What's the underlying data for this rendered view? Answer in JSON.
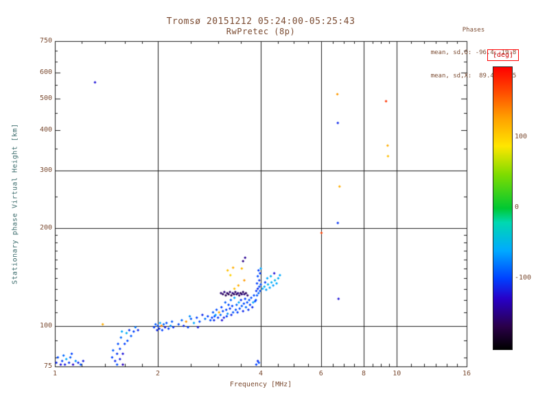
{
  "chart_data": {
    "type": "scatter",
    "title": "Tromsø 20151212 05:24:00-05:25:43",
    "subtitle": "RwPretec (8p)",
    "xlabel": "Frequency [MHz]",
    "ylabel": "Stationary phase Virtual Height [km]",
    "x_scale": "log",
    "y_scale": "log",
    "xlim": [
      1,
      16
    ],
    "ylim": [
      75,
      750
    ],
    "x_major_ticks": [
      1,
      2,
      4,
      6,
      8,
      10,
      16
    ],
    "x_gridlines": [
      2,
      4,
      6,
      8,
      10
    ],
    "x_minor_ticks": [
      1.2,
      1.4,
      1.6,
      1.8,
      2.5,
      3,
      3.5,
      4.5,
      5,
      5.5,
      6.5,
      7,
      7.5,
      8.5,
      9,
      9.5,
      11,
      12,
      13,
      14,
      15
    ],
    "y_major_ticks": [
      75,
      100,
      200,
      300,
      400,
      500,
      600,
      750
    ],
    "y_gridlines": [
      100,
      200,
      300
    ],
    "y_minor_ticks": [
      80,
      90,
      110,
      120,
      130,
      140,
      150,
      160,
      170,
      180,
      190,
      250,
      350,
      450,
      550,
      650,
      700
    ],
    "grid": true,
    "legend_position": "right-colorbar",
    "color_by": "phase_deg",
    "color_range": [
      -200,
      200
    ],
    "colormap": [
      [
        0.0,
        "#000000"
      ],
      [
        0.08,
        "#2a0048"
      ],
      [
        0.18,
        "#2800c8"
      ],
      [
        0.25,
        "#0040ff"
      ],
      [
        0.35,
        "#00aaff"
      ],
      [
        0.45,
        "#00d8b0"
      ],
      [
        0.5,
        "#00c832"
      ],
      [
        0.62,
        "#7fdc00"
      ],
      [
        0.72,
        "#ffe600"
      ],
      [
        0.82,
        "#ffa000"
      ],
      [
        0.92,
        "#ff4400"
      ],
      [
        1.0,
        "#ff0000"
      ]
    ],
    "points_format": [
      "frequency_MHz",
      "virtual_height_km",
      "phase_deg"
    ],
    "points": [
      [
        1.01,
        77,
        -110
      ],
      [
        1.02,
        80,
        -95
      ],
      [
        1.04,
        76,
        -120
      ],
      [
        1.05,
        78,
        -100
      ],
      [
        1.06,
        81,
        -85
      ],
      [
        1.07,
        76,
        -115
      ],
      [
        1.08,
        79,
        -60
      ],
      [
        1.1,
        77,
        -105
      ],
      [
        1.11,
        80,
        -90
      ],
      [
        1.13,
        76,
        -125
      ],
      [
        1.15,
        78,
        -70
      ],
      [
        1.17,
        77,
        -110
      ],
      [
        1.19,
        76,
        -95
      ],
      [
        1.21,
        78,
        -115
      ],
      [
        1.12,
        82,
        -100
      ],
      [
        1.31,
        560,
        -120
      ],
      [
        1.38,
        101,
        120
      ],
      [
        1.47,
        80,
        -100
      ],
      [
        1.48,
        84,
        -90
      ],
      [
        1.5,
        78,
        -110
      ],
      [
        1.52,
        82,
        -105
      ],
      [
        1.53,
        88,
        -95
      ],
      [
        1.55,
        79,
        -115
      ],
      [
        1.55,
        85,
        -100
      ],
      [
        1.56,
        92,
        -85
      ],
      [
        1.57,
        96,
        -60
      ],
      [
        1.58,
        82,
        -120
      ],
      [
        1.6,
        88,
        -100
      ],
      [
        1.62,
        95,
        -55
      ],
      [
        1.63,
        90,
        -95
      ],
      [
        1.65,
        97,
        -105
      ],
      [
        1.67,
        93,
        -90
      ],
      [
        1.7,
        96,
        -100
      ],
      [
        1.72,
        99,
        -80
      ],
      [
        1.75,
        97,
        -110
      ],
      [
        1.58,
        76,
        -130
      ],
      [
        1.52,
        76,
        -95
      ],
      [
        1.95,
        99,
        -100
      ],
      [
        1.97,
        101,
        -90
      ],
      [
        1.99,
        97,
        -110
      ],
      [
        2.0,
        100,
        -95
      ],
      [
        2.02,
        98,
        -105
      ],
      [
        2.03,
        102,
        -60
      ],
      [
        2.05,
        100,
        140
      ],
      [
        2.06,
        97,
        -100
      ],
      [
        2.08,
        101,
        -85
      ],
      [
        2.1,
        99,
        -115
      ],
      [
        2.12,
        102,
        -95
      ],
      [
        2.15,
        98,
        -100
      ],
      [
        2.18,
        100,
        -70
      ],
      [
        2.2,
        103,
        -90
      ],
      [
        2.22,
        99,
        -105
      ],
      [
        2.3,
        101,
        -95
      ],
      [
        2.35,
        104,
        -85
      ],
      [
        2.38,
        100,
        -110
      ],
      [
        2.42,
        103,
        130
      ],
      [
        2.45,
        99,
        -100
      ],
      [
        2.5,
        105,
        -90
      ],
      [
        2.55,
        102,
        -60
      ],
      [
        2.6,
        106,
        -100
      ],
      [
        2.65,
        103,
        -95
      ],
      [
        2.7,
        108,
        -110
      ],
      [
        2.75,
        105,
        -80
      ],
      [
        2.8,
        107,
        -100
      ],
      [
        2.85,
        104,
        -95
      ],
      [
        2.62,
        99,
        -115
      ],
      [
        2.48,
        107,
        -70
      ],
      [
        2.88,
        106,
        -100
      ],
      [
        2.9,
        110,
        -90
      ],
      [
        2.92,
        104,
        -110
      ],
      [
        2.95,
        108,
        -60
      ],
      [
        2.97,
        112,
        -95
      ],
      [
        3.0,
        106,
        -105
      ],
      [
        3.02,
        110,
        120
      ],
      [
        3.05,
        108,
        -85
      ],
      [
        3.07,
        114,
        -100
      ],
      [
        3.1,
        111,
        -95
      ],
      [
        3.12,
        106,
        -115
      ],
      [
        3.15,
        118,
        -90
      ],
      [
        3.17,
        112,
        -100
      ],
      [
        3.2,
        109,
        -70
      ],
      [
        3.22,
        116,
        -95
      ],
      [
        3.25,
        113,
        -105
      ],
      [
        3.27,
        120,
        -85
      ],
      [
        3.3,
        115,
        -100
      ],
      [
        3.32,
        110,
        -90
      ],
      [
        3.35,
        122,
        -60
      ],
      [
        3.08,
        104,
        -120
      ],
      [
        3.18,
        107,
        -100
      ],
      [
        2.93,
        107,
        -95
      ],
      [
        3.28,
        108,
        -110
      ],
      [
        3.2,
        148,
        110
      ],
      [
        3.32,
        151,
        120
      ],
      [
        3.26,
        143,
        100
      ],
      [
        3.52,
        150,
        115
      ],
      [
        3.06,
        126,
        -155
      ],
      [
        3.1,
        125,
        -160
      ],
      [
        3.13,
        127,
        -150
      ],
      [
        3.16,
        124,
        -165
      ],
      [
        3.19,
        126,
        -158
      ],
      [
        3.22,
        125,
        -162
      ],
      [
        3.25,
        127,
        -155
      ],
      [
        3.28,
        124,
        -168
      ],
      [
        3.31,
        126,
        -152
      ],
      [
        3.34,
        125,
        -160
      ],
      [
        3.37,
        127,
        -157
      ],
      [
        3.4,
        125,
        -163
      ],
      [
        3.43,
        126,
        -150
      ],
      [
        3.46,
        124,
        -158
      ],
      [
        3.49,
        126,
        -165
      ],
      [
        3.52,
        125,
        -155
      ],
      [
        3.55,
        127,
        -160
      ],
      [
        3.58,
        125,
        -152
      ],
      [
        3.62,
        126,
        -162
      ],
      [
        3.66,
        124,
        -156
      ],
      [
        3.38,
        112,
        -95
      ],
      [
        3.4,
        116,
        -85
      ],
      [
        3.42,
        110,
        -100
      ],
      [
        3.45,
        118,
        -60
      ],
      [
        3.47,
        113,
        -95
      ],
      [
        3.5,
        120,
        -105
      ],
      [
        3.52,
        115,
        -90
      ],
      [
        3.55,
        111,
        -110
      ],
      [
        3.57,
        117,
        -95
      ],
      [
        3.6,
        121,
        -100
      ],
      [
        3.62,
        114,
        -85
      ],
      [
        3.65,
        118,
        -95
      ],
      [
        3.68,
        112,
        -105
      ],
      [
        3.7,
        120,
        -90
      ],
      [
        3.72,
        116,
        -100
      ],
      [
        3.75,
        122,
        -95
      ],
      [
        3.78,
        114,
        -110
      ],
      [
        3.8,
        118,
        -60
      ],
      [
        3.82,
        124,
        -95
      ],
      [
        3.85,
        119,
        -100
      ],
      [
        3.55,
        158,
        -150
      ],
      [
        3.6,
        162,
        -145
      ],
      [
        3.44,
        133,
        120
      ],
      [
        3.58,
        138,
        130
      ],
      [
        3.35,
        130,
        110
      ],
      [
        3.87,
        120,
        -95
      ],
      [
        3.88,
        128,
        -105
      ],
      [
        3.9,
        124,
        -90
      ],
      [
        3.9,
        135,
        -100
      ],
      [
        3.92,
        130,
        -110
      ],
      [
        3.92,
        142,
        -95
      ],
      [
        3.94,
        126,
        -85
      ],
      [
        3.94,
        148,
        -100
      ],
      [
        3.96,
        132,
        -95
      ],
      [
        3.96,
        138,
        -105
      ],
      [
        3.98,
        128,
        -90
      ],
      [
        3.98,
        145,
        -100
      ],
      [
        4.0,
        134,
        -95
      ],
      [
        4.0,
        150,
        -60
      ],
      [
        3.88,
        76,
        -100
      ],
      [
        3.92,
        78,
        -110
      ],
      [
        3.95,
        77,
        -95
      ],
      [
        4.05,
        130,
        -60
      ],
      [
        4.1,
        132,
        -55
      ],
      [
        4.15,
        129,
        -65
      ],
      [
        4.2,
        134,
        -50
      ],
      [
        4.25,
        131,
        -60
      ],
      [
        4.3,
        136,
        -55
      ],
      [
        4.35,
        133,
        -65
      ],
      [
        4.4,
        138,
        -50
      ],
      [
        4.45,
        135,
        -60
      ],
      [
        4.5,
        140,
        -55
      ],
      [
        4.55,
        143,
        -60
      ],
      [
        4.18,
        140,
        -60
      ],
      [
        4.28,
        142,
        -55
      ],
      [
        4.38,
        145,
        -120
      ],
      [
        4.12,
        136,
        -100
      ],
      [
        6.7,
        515,
        130
      ],
      [
        9.3,
        490,
        175
      ],
      [
        6.72,
        420,
        -110
      ],
      [
        9.4,
        358,
        120
      ],
      [
        9.42,
        332,
        110
      ],
      [
        6.8,
        268,
        120
      ],
      [
        6.02,
        193,
        170
      ],
      [
        6.72,
        207,
        -105
      ],
      [
        6.75,
        121,
        -120
      ]
    ]
  },
  "stats": {
    "heading": "Phases",
    "o_line": "mean, sd,O: -96.4, 19.8",
    "x_line": "mean, sd,X:  89.4, 26.5"
  },
  "colorbar": {
    "unit": "[deg]",
    "range": [
      -200,
      200
    ],
    "ticks": [
      {
        "value": 100,
        "label": "100"
      },
      {
        "value": 0,
        "label": "0"
      },
      {
        "value": -100,
        "label": "-100"
      }
    ]
  },
  "colors": {
    "ink": "#7a4a30",
    "ylabel_ink": "#3a6b6b",
    "axis": "#1a1a1a",
    "deg_accent": "#ff0000"
  }
}
